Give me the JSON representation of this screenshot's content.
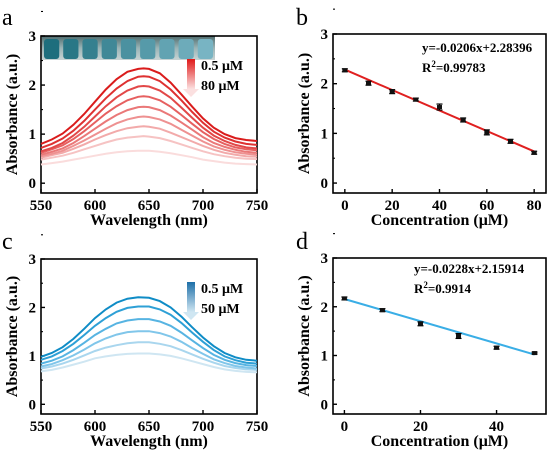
{
  "chart_data": [
    {
      "panel": "a",
      "type": "line",
      "xlabel": "Wavelength (nm)",
      "ylabel": "Absorbance (a.u.)",
      "xlim": [
        550,
        750
      ],
      "ylim": [
        -0.2,
        3
      ],
      "xticks": [
        550,
        600,
        650,
        700,
        750
      ],
      "yticks": [
        0,
        1,
        2,
        3
      ],
      "x": [
        550,
        560,
        570,
        580,
        590,
        600,
        610,
        620,
        630,
        640,
        645,
        650,
        660,
        670,
        680,
        690,
        700,
        710,
        720,
        730,
        740,
        750
      ],
      "series_colors": [
        "#fadcdc",
        "#f6c3c3",
        "#f2aaaa",
        "#ee9191",
        "#ea7878",
        "#e66060",
        "#e24848",
        "#de3131",
        "#da1c1c"
      ],
      "series": [
        {
          "values": [
            0.38,
            0.41,
            0.44,
            0.48,
            0.52,
            0.56,
            0.6,
            0.63,
            0.65,
            0.66,
            0.66,
            0.66,
            0.64,
            0.61,
            0.57,
            0.53,
            0.48,
            0.45,
            0.42,
            0.4,
            0.39,
            0.38
          ]
        },
        {
          "values": [
            0.48,
            0.52,
            0.56,
            0.62,
            0.69,
            0.76,
            0.83,
            0.89,
            0.93,
            0.95,
            0.96,
            0.95,
            0.92,
            0.86,
            0.79,
            0.72,
            0.65,
            0.59,
            0.55,
            0.52,
            0.5,
            0.49
          ]
        },
        {
          "values": [
            0.52,
            0.57,
            0.62,
            0.7,
            0.79,
            0.89,
            0.98,
            1.06,
            1.12,
            1.15,
            1.16,
            1.15,
            1.11,
            1.03,
            0.94,
            0.85,
            0.76,
            0.68,
            0.62,
            0.58,
            0.55,
            0.54
          ]
        },
        {
          "values": [
            0.55,
            0.6,
            0.66,
            0.76,
            0.87,
            0.99,
            1.11,
            1.22,
            1.3,
            1.35,
            1.36,
            1.35,
            1.3,
            1.21,
            1.09,
            0.97,
            0.85,
            0.75,
            0.68,
            0.63,
            0.6,
            0.58
          ]
        },
        {
          "values": [
            0.58,
            0.64,
            0.71,
            0.82,
            0.96,
            1.11,
            1.26,
            1.39,
            1.49,
            1.55,
            1.56,
            1.55,
            1.49,
            1.38,
            1.24,
            1.09,
            0.94,
            0.82,
            0.74,
            0.68,
            0.64,
            0.62
          ]
        },
        {
          "values": [
            0.62,
            0.69,
            0.77,
            0.9,
            1.06,
            1.24,
            1.42,
            1.57,
            1.69,
            1.76,
            1.77,
            1.76,
            1.69,
            1.56,
            1.39,
            1.21,
            1.04,
            0.9,
            0.8,
            0.73,
            0.69,
            0.67
          ]
        },
        {
          "values": [
            0.65,
            0.72,
            0.82,
            0.97,
            1.15,
            1.36,
            1.57,
            1.75,
            1.89,
            1.97,
            1.98,
            1.97,
            1.89,
            1.74,
            1.54,
            1.33,
            1.13,
            0.97,
            0.86,
            0.78,
            0.73,
            0.71
          ]
        },
        {
          "values": [
            0.72,
            0.8,
            0.91,
            1.07,
            1.27,
            1.5,
            1.73,
            1.93,
            2.08,
            2.17,
            2.18,
            2.17,
            2.08,
            1.91,
            1.69,
            1.45,
            1.23,
            1.05,
            0.93,
            0.85,
            0.8,
            0.78
          ]
        },
        {
          "values": [
            0.8,
            0.89,
            1.01,
            1.19,
            1.41,
            1.66,
            1.91,
            2.12,
            2.27,
            2.33,
            2.34,
            2.33,
            2.24,
            2.05,
            1.81,
            1.56,
            1.32,
            1.13,
            1.0,
            0.92,
            0.88,
            0.86
          ]
        }
      ],
      "legend": {
        "top": "0.5 μM",
        "bottom": "80 μM"
      },
      "inset_vials": 9
    },
    {
      "panel": "b",
      "type": "scatter",
      "xlabel": "Concentration (μM)",
      "ylabel": "Absorbance (a.u.)",
      "xlim": [
        -5,
        85
      ],
      "ylim": [
        -0.2,
        3
      ],
      "xticks": [
        0,
        20,
        40,
        60,
        80
      ],
      "yticks": [
        0,
        1,
        2,
        3
      ],
      "x": [
        0,
        10,
        20,
        30,
        40,
        50,
        60,
        70,
        80
      ],
      "y": [
        2.27,
        2.01,
        1.84,
        1.68,
        1.53,
        1.27,
        1.02,
        0.84,
        0.61
      ],
      "error": [
        0.03,
        0.04,
        0.04,
        0.03,
        0.06,
        0.04,
        0.05,
        0.04,
        0.03
      ],
      "fit": {
        "slope": -0.0206,
        "intercept": 2.28396,
        "x_range": [
          0,
          80
        ]
      },
      "equation": "y=-0.0206x+2.28396",
      "r2_label": "R",
      "r2_value": "=0.99783",
      "fit_color": "#e02020"
    },
    {
      "panel": "c",
      "type": "line",
      "xlabel": "Wavelength (nm)",
      "ylabel": "Absorbance (a.u.)",
      "xlim": [
        550,
        750
      ],
      "ylim": [
        -0.2,
        3
      ],
      "xticks": [
        550,
        600,
        650,
        700,
        750
      ],
      "yticks": [
        0,
        1,
        2,
        3
      ],
      "x": [
        550,
        560,
        570,
        580,
        590,
        600,
        610,
        620,
        630,
        640,
        650,
        660,
        670,
        680,
        690,
        700,
        710,
        720,
        730,
        740,
        750
      ],
      "series_colors": [
        "#cfe6f2",
        "#a9d6ee",
        "#80c6ea",
        "#57b4e2",
        "#2ea0d6",
        "#0f8cc6"
      ],
      "series": [
        {
          "values": [
            0.68,
            0.71,
            0.76,
            0.82,
            0.88,
            0.95,
            0.99,
            1.02,
            1.04,
            1.05,
            1.05,
            1.03,
            1.0,
            0.95,
            0.89,
            0.83,
            0.77,
            0.72,
            0.69,
            0.67,
            0.66
          ]
        },
        {
          "values": [
            0.74,
            0.78,
            0.84,
            0.92,
            1.01,
            1.1,
            1.17,
            1.22,
            1.26,
            1.28,
            1.28,
            1.25,
            1.2,
            1.12,
            1.03,
            0.94,
            0.86,
            0.79,
            0.75,
            0.72,
            0.71
          ]
        },
        {
          "values": [
            0.78,
            0.83,
            0.91,
            1.01,
            1.13,
            1.26,
            1.36,
            1.44,
            1.49,
            1.51,
            1.51,
            1.47,
            1.4,
            1.29,
            1.16,
            1.04,
            0.93,
            0.85,
            0.79,
            0.76,
            0.74
          ]
        },
        {
          "values": [
            0.84,
            0.9,
            0.99,
            1.12,
            1.27,
            1.43,
            1.56,
            1.67,
            1.73,
            1.76,
            1.76,
            1.71,
            1.62,
            1.48,
            1.32,
            1.16,
            1.02,
            0.92,
            0.85,
            0.81,
            0.79
          ]
        },
        {
          "values": [
            0.92,
            0.99,
            1.1,
            1.25,
            1.43,
            1.62,
            1.78,
            1.91,
            1.99,
            2.02,
            2.02,
            1.96,
            1.85,
            1.68,
            1.48,
            1.29,
            1.12,
            0.99,
            0.91,
            0.86,
            0.84
          ]
        },
        {
          "values": [
            0.98,
            1.06,
            1.18,
            1.35,
            1.56,
            1.78,
            1.96,
            2.1,
            2.18,
            2.21,
            2.2,
            2.13,
            2.0,
            1.81,
            1.59,
            1.38,
            1.2,
            1.06,
            0.97,
            0.92,
            0.9
          ]
        }
      ],
      "legend": {
        "top": "0.5 μM",
        "bottom": "50 μM"
      }
    },
    {
      "panel": "d",
      "type": "scatter",
      "xlabel": "Concentration (μM)",
      "ylabel": "Absorbance (a.u.)",
      "xlim": [
        -3,
        53
      ],
      "ylim": [
        -0.2,
        3
      ],
      "xticks": [
        0,
        20,
        40
      ],
      "yticks": [
        0,
        1,
        2,
        3
      ],
      "x": [
        0,
        10,
        20,
        30,
        40,
        50
      ],
      "y": [
        2.17,
        1.93,
        1.65,
        1.4,
        1.16,
        1.05
      ],
      "error": [
        0.03,
        0.03,
        0.04,
        0.05,
        0.03,
        0.02
      ],
      "fit": {
        "slope": -0.0228,
        "intercept": 2.15914,
        "x_range": [
          0,
          50
        ]
      },
      "equation": "y=-0.0228x+2.15914",
      "r2_label": "R",
      "r2_value": "=0.9914",
      "fit_color": "#3aaee6"
    }
  ]
}
